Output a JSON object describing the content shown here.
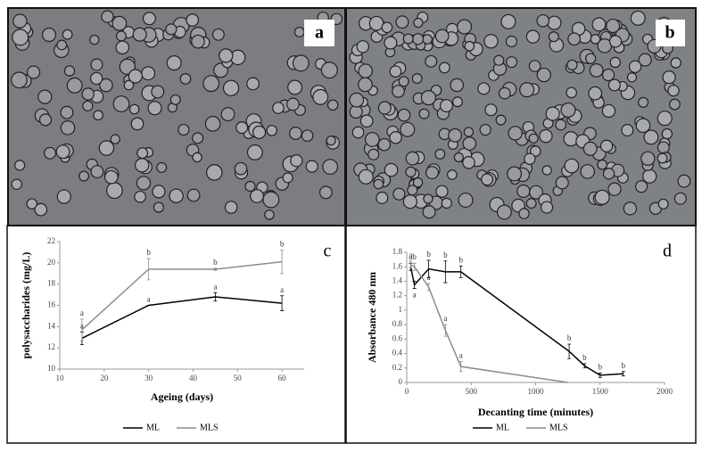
{
  "panel_labels": [
    "a",
    "b"
  ],
  "chart_data": [
    {
      "type": "line",
      "panel_label": "c",
      "xlabel": "Ageing (days)",
      "ylabel": "polysaccharides (mg/L)",
      "xlim": [
        10,
        65
      ],
      "xticks": [
        10,
        20,
        30,
        40,
        50,
        60
      ],
      "ylim": [
        10,
        22
      ],
      "yticks": [
        10,
        12,
        14,
        16,
        18,
        20,
        22
      ],
      "grid": false,
      "legend": "bottom",
      "series": [
        {
          "name": "ML",
          "color": "#000000",
          "x": [
            15,
            30,
            45,
            60
          ],
          "values": [
            12.9,
            16.0,
            16.8,
            16.2
          ],
          "errors": [
            0.6,
            0.0,
            0.4,
            0.7
          ],
          "letters": [
            "a",
            "a",
            "a",
            "a"
          ]
        },
        {
          "name": "MLS",
          "color": "#8c8c8c",
          "x": [
            15,
            30,
            45,
            60
          ],
          "values": [
            13.7,
            19.4,
            19.4,
            20.1
          ],
          "errors": [
            1.0,
            1.0,
            0.1,
            1.1
          ],
          "letters": [
            "a",
            "b",
            "b",
            "b"
          ]
        }
      ]
    },
    {
      "type": "line",
      "panel_label": "d",
      "xlabel": "Decanting time (minutes)",
      "ylabel": "Absorbance 480 nm",
      "xlim": [
        0,
        2000
      ],
      "xticks": [
        0,
        500,
        1000,
        1500,
        2000
      ],
      "ylim": [
        0,
        1.8
      ],
      "yticks": [
        0,
        0.2,
        0.4,
        0.6,
        0.8,
        1,
        1.2,
        1.4,
        1.6,
        1.8
      ],
      "grid": false,
      "legend": "bottom",
      "series": [
        {
          "name": "ML",
          "color": "#000000",
          "x": [
            30,
            60,
            170,
            300,
            420,
            1260,
            1380,
            1500,
            1680
          ],
          "values": [
            1.6,
            1.35,
            1.57,
            1.53,
            1.53,
            0.43,
            0.23,
            0.1,
            0.12
          ],
          "errors": [
            0.05,
            0.05,
            0.12,
            0.15,
            0.08,
            0.1,
            0.03,
            0.03,
            0.03
          ],
          "letters": [
            "a",
            "a",
            "b",
            "b",
            "b",
            "b",
            "b",
            "b",
            "b"
          ]
        },
        {
          "name": "MLS",
          "color": "#8c8c8c",
          "x": [
            30,
            60,
            170,
            300,
            420,
            1250
          ],
          "values": [
            1.63,
            1.6,
            1.32,
            0.72,
            0.22,
            0
          ],
          "errors": [
            0.05,
            0.05,
            0.05,
            0.08,
            0.07,
            0
          ],
          "letters": [
            "a",
            "b",
            "a",
            "a",
            "a",
            null
          ]
        }
      ]
    }
  ]
}
